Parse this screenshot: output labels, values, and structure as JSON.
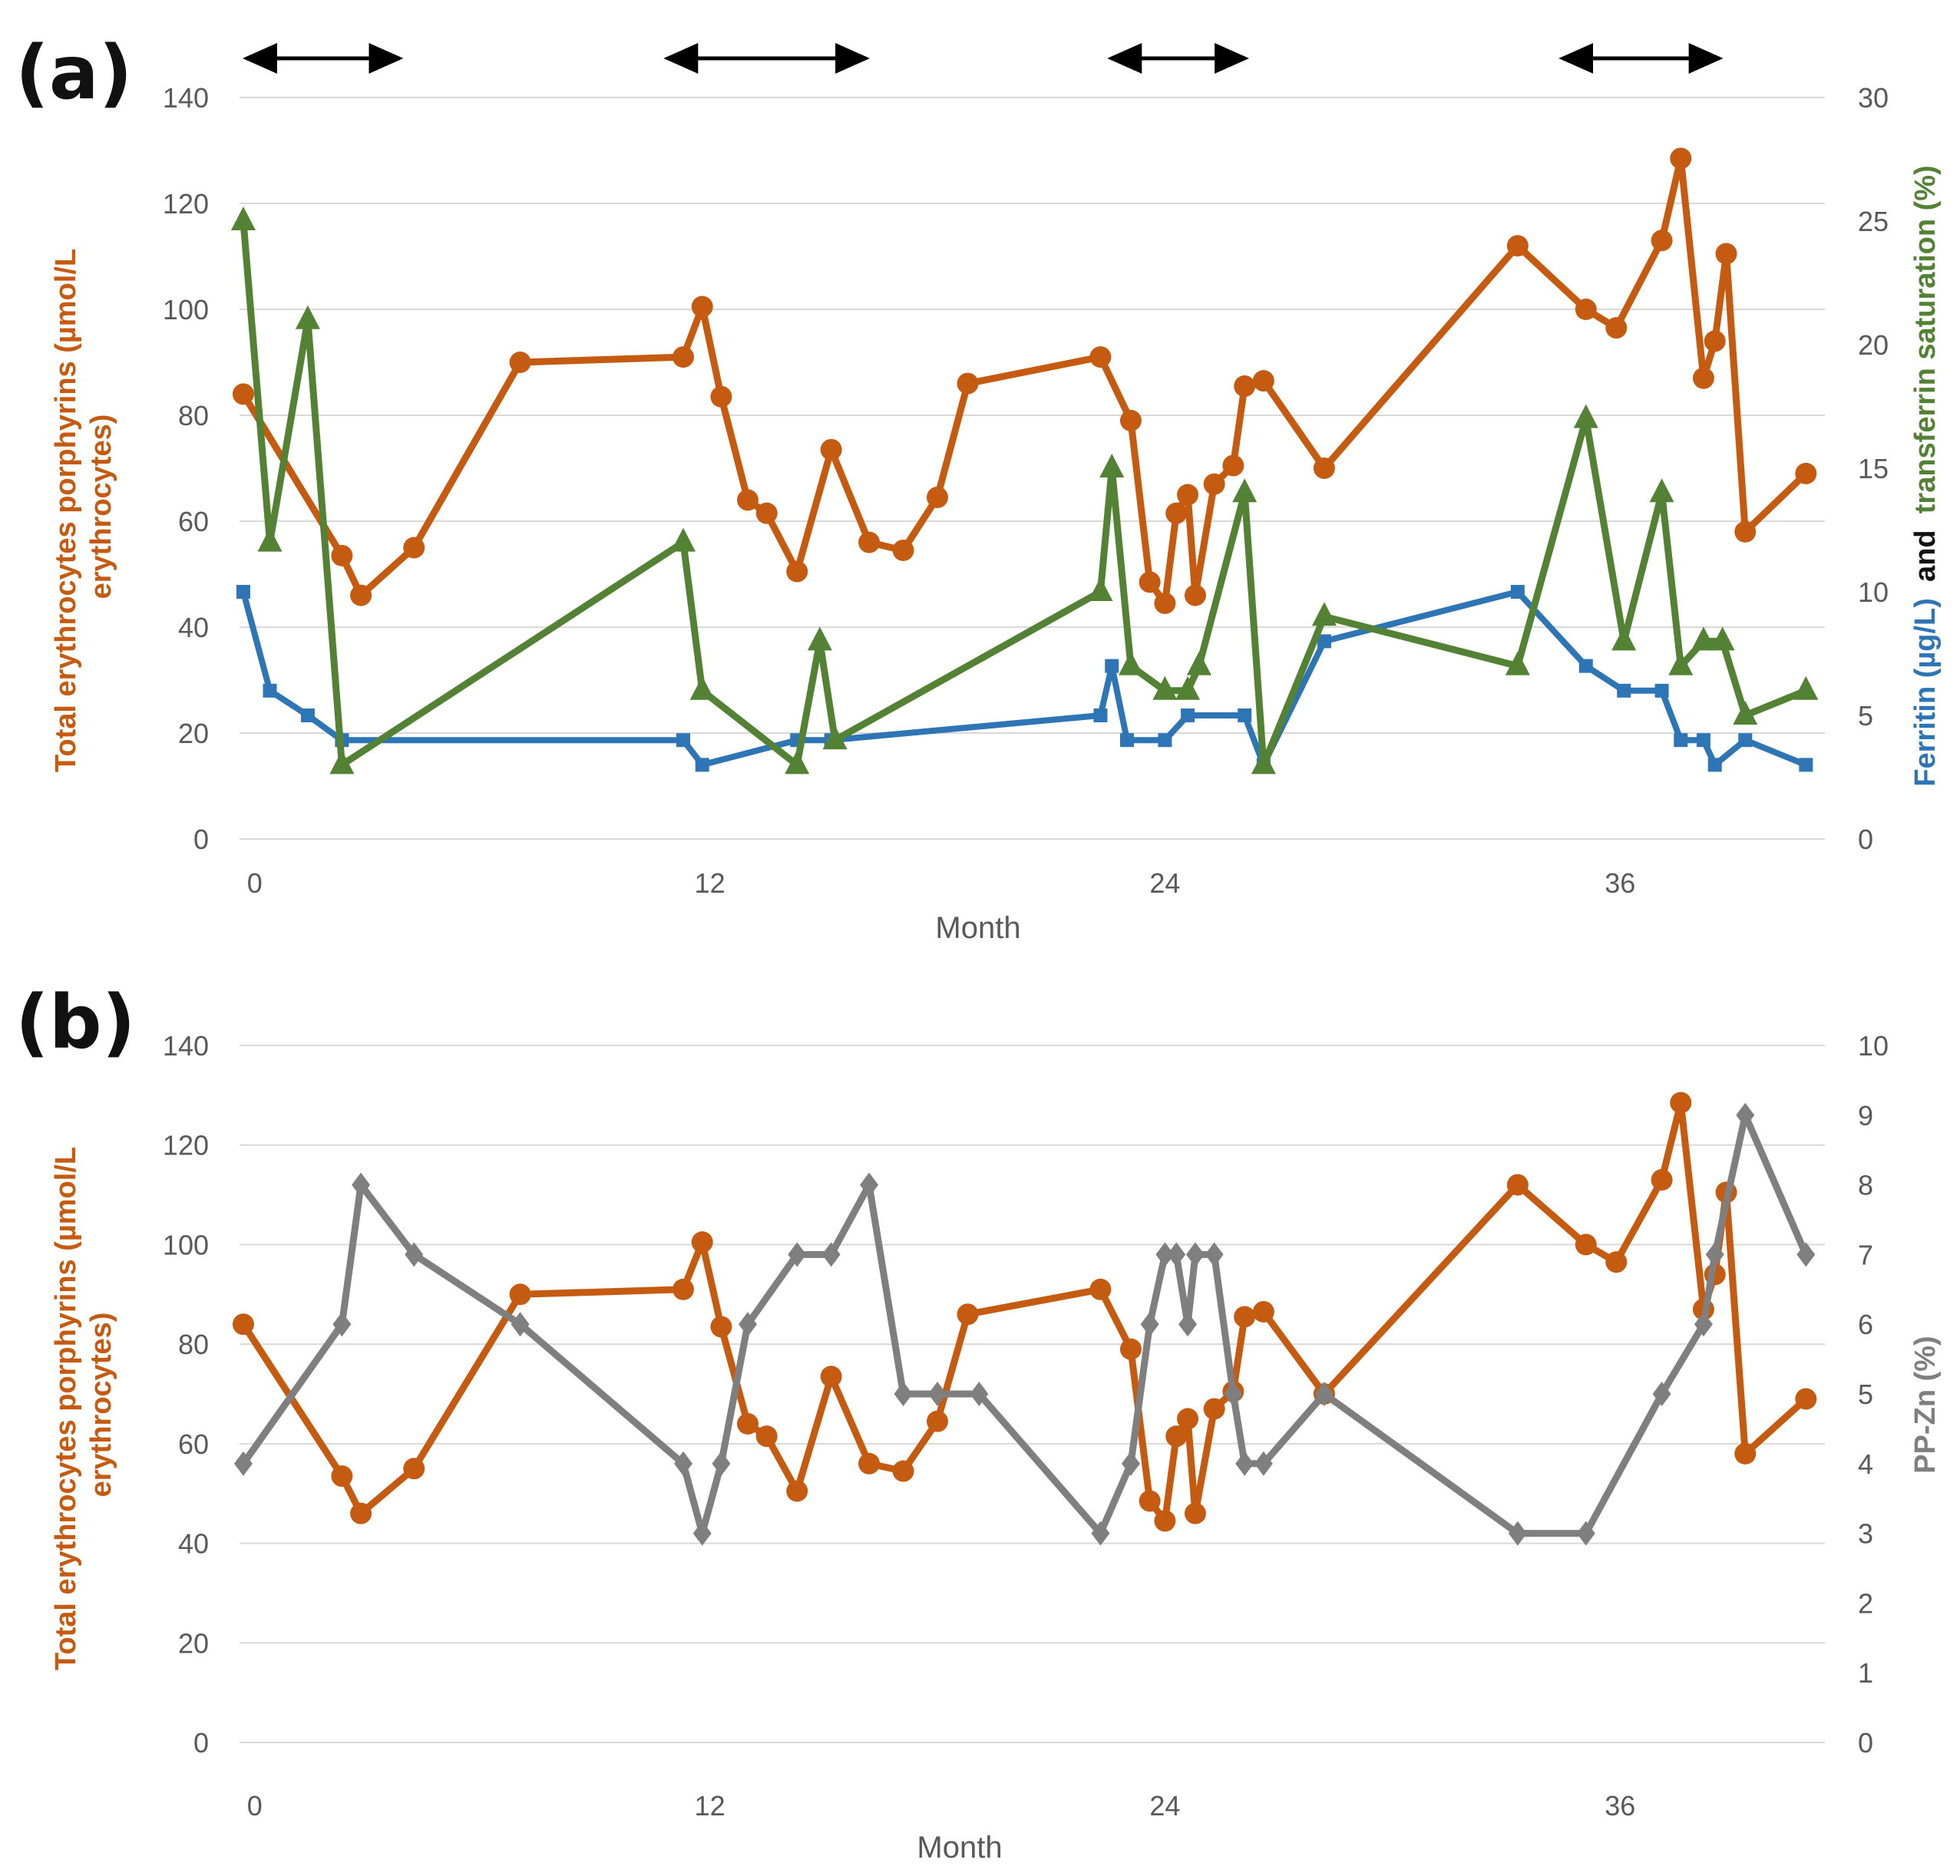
{
  "colors": {
    "porphyrins": "#C55A11",
    "ferritin": "#2E75B6",
    "transferrin": "#548235",
    "ppzn": "#7F7F7F",
    "ylabel_black": "#111111",
    "arrows": "#000000"
  },
  "chart_data": [
    {
      "panel": "(a)",
      "type": "line",
      "xlabel": "Month",
      "x_ticks": [
        "0",
        "12",
        "24",
        "36"
      ],
      "x_tick_values": [
        0,
        12,
        24,
        36
      ],
      "xlim": [
        -0.4,
        41.4
      ],
      "y_left": {
        "label": "Total erythrocytes porphyrins (µmol/L erythrocytes)",
        "label_lines": [
          "Total erythrocytes porphyrins (µmol/L",
          "erythrocytes)"
        ],
        "ticks": [
          "0",
          "20",
          "40",
          "60",
          "80",
          "100",
          "120",
          "140"
        ],
        "lim": [
          0,
          140
        ]
      },
      "y_right": {
        "label_parts": [
          {
            "text": "Ferritin (µg/L)",
            "color_key": "ferritin"
          },
          {
            "text": " and ",
            "color_key": "ylabel_black"
          },
          {
            "text": "transferrin saturation (%)",
            "color_key": "transferrin"
          }
        ],
        "ticks": [
          "0",
          "5",
          "10",
          "15",
          "20",
          "25",
          "30"
        ],
        "lim": [
          0,
          30
        ]
      },
      "treatment_periods": [
        [
          -0.3,
          3.9
        ],
        [
          10.8,
          16.2
        ],
        [
          22.5,
          26.2
        ],
        [
          34.4,
          38.7
        ]
      ],
      "series": [
        {
          "name": "Total erythrocytes porphyrins",
          "axis": "left",
          "marker": "circle",
          "color_key": "porphyrins",
          "points": [
            [
              -0.3,
              84
            ],
            [
              2.3,
              53.5
            ],
            [
              2.8,
              46
            ],
            [
              4.2,
              55
            ],
            [
              7.0,
              90
            ],
            [
              11.3,
              91
            ],
            [
              11.8,
              100.5
            ],
            [
              12.3,
              83.5
            ],
            [
              13.0,
              64
            ],
            [
              13.5,
              61.5
            ],
            [
              14.3,
              50.5
            ],
            [
              15.2,
              73.5
            ],
            [
              16.2,
              56
            ],
            [
              17.1,
              54.5
            ],
            [
              18.0,
              64.5
            ],
            [
              18.8,
              86
            ],
            [
              22.3,
              91
            ],
            [
              23.1,
              79
            ],
            [
              23.6,
              48.5
            ],
            [
              24.0,
              44.5
            ],
            [
              24.3,
              61.5
            ],
            [
              24.6,
              65
            ],
            [
              24.8,
              46
            ],
            [
              25.3,
              67
            ],
            [
              25.8,
              70.5
            ],
            [
              26.1,
              85.5
            ],
            [
              26.6,
              86.5
            ],
            [
              28.2,
              70
            ],
            [
              33.3,
              112
            ],
            [
              35.1,
              100
            ],
            [
              35.9,
              96.5
            ],
            [
              37.1,
              113
            ],
            [
              37.6,
              128.5
            ],
            [
              38.2,
              87
            ],
            [
              38.5,
              94
            ],
            [
              38.8,
              110.5
            ],
            [
              39.3,
              58
            ],
            [
              40.9,
              69
            ]
          ]
        },
        {
          "name": "Ferritin (µg/L)",
          "axis": "right",
          "marker": "square",
          "color_key": "ferritin",
          "points": [
            [
              -0.3,
              10
            ],
            [
              0.4,
              6
            ],
            [
              1.4,
              5
            ],
            [
              2.3,
              4
            ],
            [
              11.3,
              4
            ],
            [
              11.8,
              3
            ],
            [
              14.3,
              4
            ],
            [
              15.2,
              4
            ],
            [
              22.3,
              5
            ],
            [
              22.6,
              7
            ],
            [
              23.0,
              4
            ],
            [
              24.0,
              4
            ],
            [
              24.6,
              5
            ],
            [
              26.1,
              5
            ],
            [
              26.6,
              3
            ],
            [
              28.2,
              8
            ],
            [
              33.3,
              10
            ],
            [
              35.1,
              7
            ],
            [
              36.1,
              6
            ],
            [
              37.1,
              6
            ],
            [
              37.6,
              4
            ],
            [
              38.2,
              4
            ],
            [
              38.5,
              3
            ],
            [
              39.3,
              4
            ],
            [
              40.9,
              3
            ]
          ]
        },
        {
          "name": "Transferrin saturation (%)",
          "axis": "right",
          "marker": "triangle",
          "color_key": "transferrin",
          "points": [
            [
              -0.3,
              25
            ],
            [
              0.4,
              12
            ],
            [
              1.4,
              21
            ],
            [
              2.3,
              3
            ],
            [
              11.3,
              12
            ],
            [
              11.8,
              6
            ],
            [
              14.3,
              3
            ],
            [
              14.9,
              8
            ],
            [
              15.3,
              4
            ],
            [
              22.3,
              10
            ],
            [
              22.6,
              15
            ],
            [
              23.1,
              7
            ],
            [
              24.0,
              6
            ],
            [
              24.6,
              6
            ],
            [
              24.9,
              7
            ],
            [
              26.1,
              14
            ],
            [
              26.6,
              3
            ],
            [
              28.2,
              9
            ],
            [
              33.3,
              7
            ],
            [
              35.1,
              17
            ],
            [
              36.1,
              8
            ],
            [
              37.1,
              14
            ],
            [
              37.6,
              7
            ],
            [
              38.2,
              8
            ],
            [
              38.7,
              8
            ],
            [
              39.3,
              5
            ],
            [
              40.9,
              6
            ]
          ]
        }
      ]
    },
    {
      "panel": "(b)",
      "type": "line",
      "xlabel": "Month",
      "x_ticks": [
        "0",
        "12",
        "24",
        "36"
      ],
      "x_tick_values": [
        0,
        12,
        24,
        36
      ],
      "xlim": [
        -0.4,
        41.4
      ],
      "y_left": {
        "label": "Total erythrocytes porphyrins (µmol/L erythrocytes)",
        "label_lines": [
          "Total erythrocytes porphyrins (µmol/L",
          "erythrocytes)"
        ],
        "ticks": [
          "0",
          "20",
          "40",
          "60",
          "80",
          "100",
          "120",
          "140"
        ],
        "lim": [
          0,
          140
        ]
      },
      "y_right": {
        "label_parts": [
          {
            "text": "PP-Zn (%)",
            "color_key": "ppzn"
          }
        ],
        "ticks": [
          "0",
          "1",
          "2",
          "3",
          "4",
          "5",
          "6",
          "7",
          "8",
          "9",
          "10"
        ],
        "lim": [
          0,
          10
        ]
      },
      "series": [
        {
          "name": "Total erythrocytes porphyrins",
          "axis": "left",
          "marker": "circle",
          "color_key": "porphyrins",
          "points": [
            [
              -0.3,
              84
            ],
            [
              2.3,
              53.5
            ],
            [
              2.8,
              46
            ],
            [
              4.2,
              55
            ],
            [
              7.0,
              90
            ],
            [
              11.3,
              91
            ],
            [
              11.8,
              100.5
            ],
            [
              12.3,
              83.5
            ],
            [
              13.0,
              64
            ],
            [
              13.5,
              61.5
            ],
            [
              14.3,
              50.5
            ],
            [
              15.2,
              73.5
            ],
            [
              16.2,
              56
            ],
            [
              17.1,
              54.5
            ],
            [
              18.0,
              64.5
            ],
            [
              18.8,
              86
            ],
            [
              22.3,
              91
            ],
            [
              23.1,
              79
            ],
            [
              23.6,
              48.5
            ],
            [
              24.0,
              44.5
            ],
            [
              24.3,
              61.5
            ],
            [
              24.6,
              65
            ],
            [
              24.8,
              46
            ],
            [
              25.3,
              67
            ],
            [
              25.8,
              70.5
            ],
            [
              26.1,
              85.5
            ],
            [
              26.6,
              86.5
            ],
            [
              28.2,
              70
            ],
            [
              33.3,
              112
            ],
            [
              35.1,
              100
            ],
            [
              35.9,
              96.5
            ],
            [
              37.1,
              113
            ],
            [
              37.6,
              128.5
            ],
            [
              38.2,
              87
            ],
            [
              38.5,
              94
            ],
            [
              38.8,
              110.5
            ],
            [
              39.3,
              58
            ],
            [
              40.9,
              69
            ]
          ]
        },
        {
          "name": "PP-Zn (%)",
          "axis": "right",
          "marker": "diamond",
          "color_key": "ppzn",
          "points": [
            [
              -0.3,
              4
            ],
            [
              2.3,
              6
            ],
            [
              2.8,
              8
            ],
            [
              4.2,
              7
            ],
            [
              7.0,
              6
            ],
            [
              11.3,
              4
            ],
            [
              11.8,
              3
            ],
            [
              12.3,
              4
            ],
            [
              13.0,
              6
            ],
            [
              14.3,
              7
            ],
            [
              15.2,
              7
            ],
            [
              16.2,
              8
            ],
            [
              17.1,
              5
            ],
            [
              18.0,
              5
            ],
            [
              19.1,
              5
            ],
            [
              22.3,
              3
            ],
            [
              23.1,
              4
            ],
            [
              23.6,
              6
            ],
            [
              24.0,
              7
            ],
            [
              24.3,
              7
            ],
            [
              24.6,
              6
            ],
            [
              24.8,
              7
            ],
            [
              25.3,
              7
            ],
            [
              25.8,
              5
            ],
            [
              26.1,
              4
            ],
            [
              26.6,
              4
            ],
            [
              28.2,
              5
            ],
            [
              33.3,
              3
            ],
            [
              35.1,
              3
            ],
            [
              37.1,
              5
            ],
            [
              38.2,
              6
            ],
            [
              38.5,
              7
            ],
            [
              39.3,
              9
            ],
            [
              40.9,
              7
            ]
          ]
        }
      ]
    }
  ]
}
